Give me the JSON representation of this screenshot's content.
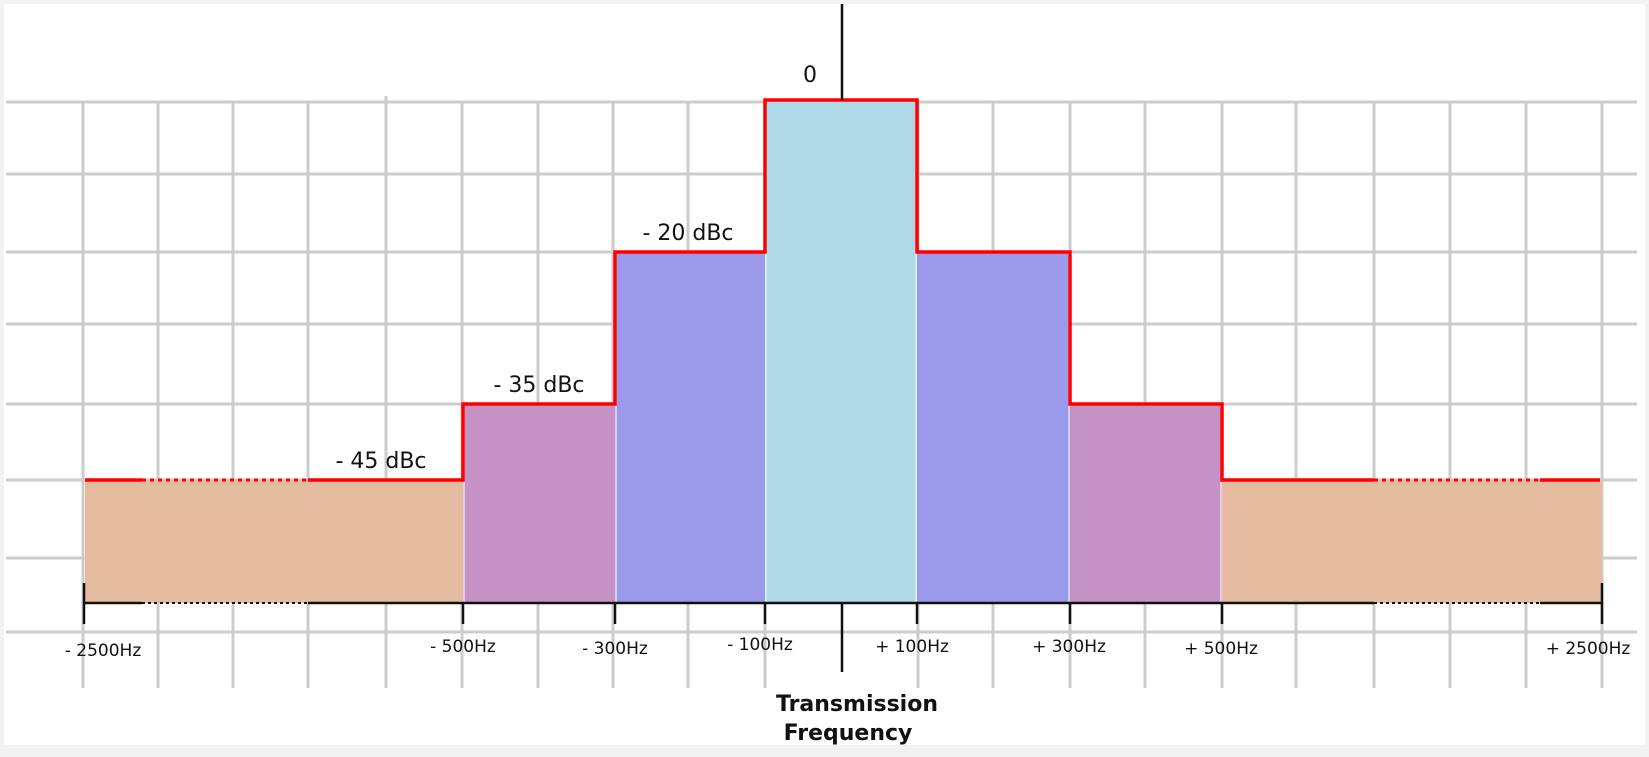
{
  "diagram": {
    "center_label": "0",
    "levels": [
      {
        "label": "- 20 dBc",
        "color": "#9b99e9"
      },
      {
        "label": "- 35 dBc",
        "color": "#c492c4"
      },
      {
        "label": "- 45 dBc",
        "color": "#e5bca0"
      }
    ],
    "carrier_color": "#add8e6",
    "mask_color": "#ff0000",
    "ticks": [
      "- 2500Hz",
      "- 500Hz",
      "- 300Hz",
      "- 100Hz",
      "+ 100Hz",
      "+ 300Hz",
      "+ 500Hz",
      "+ 2500Hz"
    ],
    "axis_title_line1": "Transmission",
    "axis_title_line2": "Frequency"
  }
}
